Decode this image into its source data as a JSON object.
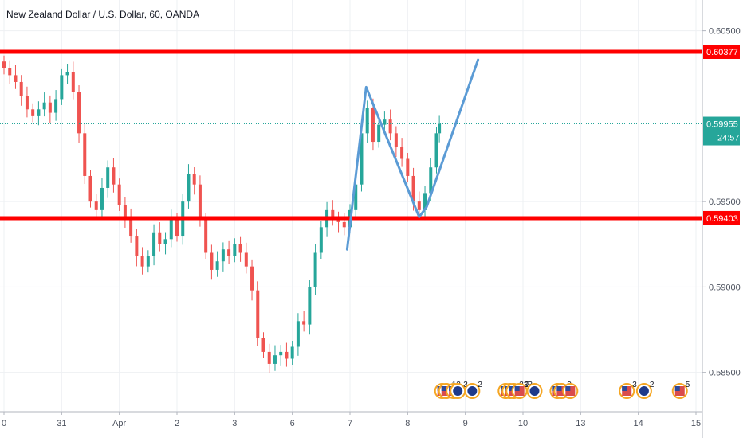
{
  "title": "New Zealand Dollar / U.S. Dollar, 60, OANDA",
  "colors": {
    "up": "#26a69a",
    "down": "#ef5350",
    "level": "#ff0000",
    "pattern": "#5b9bd5",
    "grid": "#eef0f3",
    "current_price": "#26a69a"
  },
  "chart_data": {
    "type": "candlestick",
    "ylim": [
      0.5827,
      0.6068
    ],
    "y_ticks": [
      "0.60500",
      "0.59500",
      "0.59000",
      "0.58500"
    ],
    "y_tick_values": [
      0.605,
      0.595,
      0.59,
      0.585
    ],
    "x_ticks": [
      "0",
      "31",
      "Apr",
      "2",
      "3",
      "6",
      "7",
      "8",
      "9",
      "10",
      "13",
      "14",
      "15"
    ],
    "x_tick_positions": [
      0,
      1,
      2,
      3,
      4,
      5,
      6,
      7,
      8,
      9,
      10,
      11,
      12
    ],
    "levels": [
      {
        "label": "0.60377",
        "value": 0.60377
      },
      {
        "label": "0.59403",
        "value": 0.59403
      }
    ],
    "current_price": {
      "label": "0.59955",
      "value": 0.59955,
      "countdown": "24:57"
    },
    "pattern_path": [
      [
        5.95,
        0.5922
      ],
      [
        6.28,
        0.6017
      ],
      [
        7.2,
        0.5941
      ],
      [
        7.33,
        0.5947
      ],
      [
        8.22,
        0.6033
      ]
    ],
    "candles_approx": [
      {
        "x": 0.0,
        "close": 0.6028
      },
      {
        "x": 0.1,
        "close": 0.6024
      },
      {
        "x": 0.2,
        "close": 0.602
      },
      {
        "x": 0.3,
        "close": 0.6012
      },
      {
        "x": 0.4,
        "close": 0.6004
      },
      {
        "x": 0.5,
        "close": 0.6
      },
      {
        "x": 0.6,
        "close": 0.6004
      },
      {
        "x": 0.7,
        "close": 0.6008
      },
      {
        "x": 0.8,
        "close": 0.6002
      },
      {
        "x": 0.9,
        "close": 0.601
      },
      {
        "x": 1.0,
        "close": 0.6024
      },
      {
        "x": 1.1,
        "close": 0.6026
      },
      {
        "x": 1.2,
        "close": 0.6014
      },
      {
        "x": 1.3,
        "close": 0.599
      },
      {
        "x": 1.4,
        "close": 0.5965
      },
      {
        "x": 1.5,
        "close": 0.595
      },
      {
        "x": 1.6,
        "close": 0.5945
      },
      {
        "x": 1.7,
        "close": 0.5958
      },
      {
        "x": 1.8,
        "close": 0.597
      },
      {
        "x": 1.9,
        "close": 0.596
      },
      {
        "x": 2.0,
        "close": 0.5948
      },
      {
        "x": 2.1,
        "close": 0.594
      },
      {
        "x": 2.2,
        "close": 0.593
      },
      {
        "x": 2.3,
        "close": 0.5918
      },
      {
        "x": 2.4,
        "close": 0.5912
      },
      {
        "x": 2.5,
        "close": 0.5918
      },
      {
        "x": 2.6,
        "close": 0.5932
      },
      {
        "x": 2.7,
        "close": 0.5925
      },
      {
        "x": 2.8,
        "close": 0.5928
      },
      {
        "x": 2.9,
        "close": 0.594
      },
      {
        "x": 3.0,
        "close": 0.593
      },
      {
        "x": 3.1,
        "close": 0.595
      },
      {
        "x": 3.2,
        "close": 0.5966
      },
      {
        "x": 3.3,
        "close": 0.596
      },
      {
        "x": 3.4,
        "close": 0.594
      },
      {
        "x": 3.5,
        "close": 0.592
      },
      {
        "x": 3.6,
        "close": 0.591
      },
      {
        "x": 3.7,
        "close": 0.5915
      },
      {
        "x": 3.8,
        "close": 0.5922
      },
      {
        "x": 3.9,
        "close": 0.5918
      },
      {
        "x": 4.0,
        "close": 0.5925
      },
      {
        "x": 4.1,
        "close": 0.592
      },
      {
        "x": 4.2,
        "close": 0.5912
      },
      {
        "x": 4.3,
        "close": 0.5898
      },
      {
        "x": 4.4,
        "close": 0.587
      },
      {
        "x": 4.5,
        "close": 0.5862
      },
      {
        "x": 4.6,
        "close": 0.5855
      },
      {
        "x": 4.7,
        "close": 0.586
      },
      {
        "x": 4.8,
        "close": 0.5862
      },
      {
        "x": 4.9,
        "close": 0.5858
      },
      {
        "x": 5.0,
        "close": 0.5865
      },
      {
        "x": 5.1,
        "close": 0.588
      },
      {
        "x": 5.2,
        "close": 0.5878
      },
      {
        "x": 5.3,
        "close": 0.59
      },
      {
        "x": 5.4,
        "close": 0.592
      },
      {
        "x": 5.5,
        "close": 0.5935
      },
      {
        "x": 5.6,
        "close": 0.5945
      },
      {
        "x": 5.7,
        "close": 0.594
      },
      {
        "x": 5.8,
        "close": 0.5938
      },
      {
        "x": 5.9,
        "close": 0.5935
      },
      {
        "x": 6.0,
        "close": 0.5945
      },
      {
        "x": 6.1,
        "close": 0.596
      },
      {
        "x": 6.2,
        "close": 0.599
      },
      {
        "x": 6.3,
        "close": 0.6005
      },
      {
        "x": 6.4,
        "close": 0.5985
      },
      {
        "x": 6.5,
        "close": 0.5995
      },
      {
        "x": 6.6,
        "close": 0.5998
      },
      {
        "x": 6.7,
        "close": 0.599
      },
      {
        "x": 6.8,
        "close": 0.5982
      },
      {
        "x": 6.9,
        "close": 0.5975
      },
      {
        "x": 7.0,
        "close": 0.5965
      },
      {
        "x": 7.1,
        "close": 0.595
      },
      {
        "x": 7.2,
        "close": 0.5945
      },
      {
        "x": 7.3,
        "close": 0.5955
      },
      {
        "x": 7.4,
        "close": 0.597
      },
      {
        "x": 7.5,
        "close": 0.599
      },
      {
        "x": 7.55,
        "close": 0.59955
      }
    ]
  },
  "events": [
    {
      "x": 7.6,
      "flags": [
        "us",
        "us"
      ],
      "label": "12"
    },
    {
      "x": 7.8,
      "flags": [
        "us",
        "nz"
      ],
      "label": "3"
    },
    {
      "x": 8.12,
      "flags": [
        "nz"
      ],
      "label": "2"
    },
    {
      "x": 8.7,
      "flags": [
        "us",
        "us",
        "us"
      ],
      "label": "333"
    },
    {
      "x": 8.94,
      "flags": [
        "us"
      ],
      "label": "2"
    },
    {
      "x": 9.2,
      "flags": [
        "nz"
      ],
      "label": ""
    },
    {
      "x": 9.6,
      "flags": [
        "us",
        "us"
      ],
      "label": "9"
    },
    {
      "x": 9.82,
      "flags": [
        "us"
      ],
      "label": ""
    },
    {
      "x": 10.8,
      "flags": [
        "us"
      ],
      "label": "3"
    },
    {
      "x": 11.1,
      "flags": [
        "nz"
      ],
      "label": "2"
    },
    {
      "x": 11.72,
      "flags": [
        "us"
      ],
      "label": "5"
    }
  ]
}
